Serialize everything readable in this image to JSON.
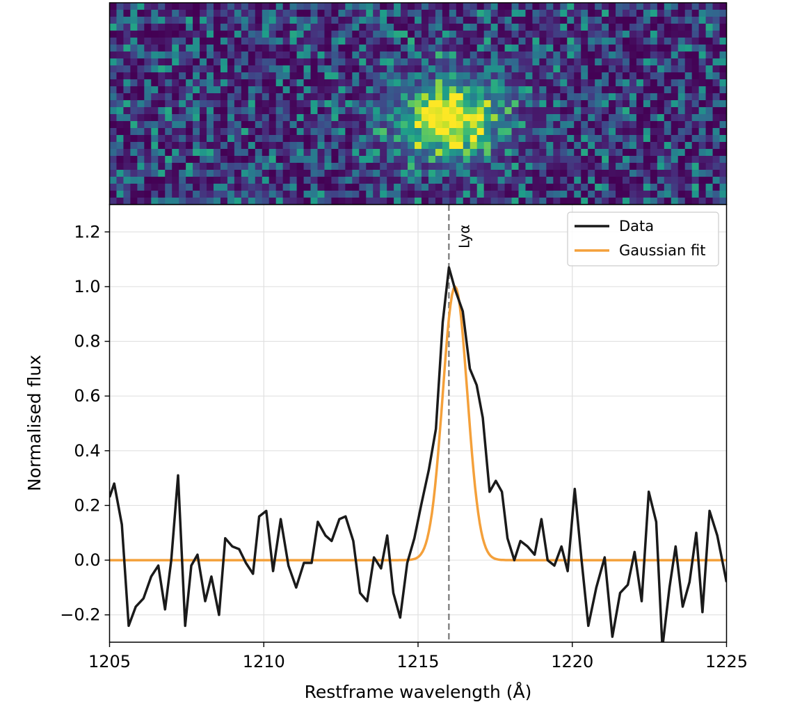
{
  "chart_data": [
    {
      "type": "heatmap",
      "panel": "2D spectrum",
      "colormap": "viridis",
      "rows": 29,
      "cols": 89,
      "axes_ticks_visible": false,
      "description_of_values": "noise background (mostly dark purple) with a bright yellow emission blob near x≈1216 Å"
    },
    {
      "type": "line",
      "xlabel": "Restframe wavelength (Å)",
      "ylabel": "Normalised flux",
      "xlim": [
        1205,
        1225
      ],
      "ylim": [
        -0.3,
        1.3
      ],
      "xticks": [
        1205,
        1210,
        1215,
        1220,
        1225
      ],
      "xtick_labels": [
        "1205",
        "1210",
        "1215",
        "1220",
        "1225"
      ],
      "yticks": [
        -0.2,
        0.0,
        0.2,
        0.4,
        0.6,
        0.8,
        1.0,
        1.2
      ],
      "ytick_labels": [
        "−0.2",
        "0.0",
        "0.2",
        "0.4",
        "0.6",
        "0.8",
        "1.0",
        "1.2"
      ],
      "grid": true,
      "legend_position": "top-right",
      "reference_line": {
        "x": 1216.0,
        "label": "Lyα",
        "style": "dashed",
        "color": "#808080"
      },
      "series": [
        {
          "name": "Data",
          "color": "#1a1a1a",
          "points": [
            [
              1205.0,
              0.23
            ],
            [
              1205.15,
              0.28
            ],
            [
              1205.4,
              0.13
            ],
            [
              1205.62,
              -0.24
            ],
            [
              1205.85,
              -0.17
            ],
            [
              1206.1,
              -0.14
            ],
            [
              1206.35,
              -0.06
            ],
            [
              1206.58,
              -0.02
            ],
            [
              1206.8,
              -0.18
            ],
            [
              1207.0,
              0.0
            ],
            [
              1207.22,
              0.31
            ],
            [
              1207.45,
              -0.24
            ],
            [
              1207.65,
              -0.02
            ],
            [
              1207.85,
              0.02
            ],
            [
              1208.1,
              -0.15
            ],
            [
              1208.3,
              -0.06
            ],
            [
              1208.55,
              -0.2
            ],
            [
              1208.75,
              0.08
            ],
            [
              1208.98,
              0.05
            ],
            [
              1209.2,
              0.04
            ],
            [
              1209.42,
              -0.01
            ],
            [
              1209.65,
              -0.05
            ],
            [
              1209.85,
              0.16
            ],
            [
              1210.08,
              0.18
            ],
            [
              1210.3,
              -0.04
            ],
            [
              1210.55,
              0.15
            ],
            [
              1210.8,
              -0.02
            ],
            [
              1211.05,
              -0.1
            ],
            [
              1211.3,
              -0.01
            ],
            [
              1211.55,
              -0.01
            ],
            [
              1211.75,
              0.14
            ],
            [
              1212.0,
              0.09
            ],
            [
              1212.2,
              0.07
            ],
            [
              1212.45,
              0.15
            ],
            [
              1212.65,
              0.16
            ],
            [
              1212.9,
              0.07
            ],
            [
              1213.12,
              -0.12
            ],
            [
              1213.35,
              -0.15
            ],
            [
              1213.57,
              0.01
            ],
            [
              1213.8,
              -0.03
            ],
            [
              1214.0,
              0.09
            ],
            [
              1214.2,
              -0.12
            ],
            [
              1214.42,
              -0.21
            ],
            [
              1214.65,
              -0.01
            ],
            [
              1214.88,
              0.08
            ],
            [
              1215.1,
              0.2
            ],
            [
              1215.35,
              0.33
            ],
            [
              1215.58,
              0.48
            ],
            [
              1215.8,
              0.87
            ],
            [
              1216.0,
              1.07
            ],
            [
              1216.2,
              0.99
            ],
            [
              1216.45,
              0.91
            ],
            [
              1216.68,
              0.7
            ],
            [
              1216.9,
              0.64
            ],
            [
              1217.1,
              0.52
            ],
            [
              1217.32,
              0.25
            ],
            [
              1217.52,
              0.29
            ],
            [
              1217.72,
              0.25
            ],
            [
              1217.9,
              0.08
            ],
            [
              1218.12,
              0.0
            ],
            [
              1218.32,
              0.07
            ],
            [
              1218.55,
              0.05
            ],
            [
              1218.78,
              0.02
            ],
            [
              1219.0,
              0.15
            ],
            [
              1219.2,
              0.0
            ],
            [
              1219.42,
              -0.02
            ],
            [
              1219.65,
              0.05
            ],
            [
              1219.85,
              -0.04
            ],
            [
              1220.08,
              0.26
            ],
            [
              1220.3,
              0.0
            ],
            [
              1220.52,
              -0.24
            ],
            [
              1220.78,
              -0.1
            ],
            [
              1221.05,
              0.01
            ],
            [
              1221.3,
              -0.28
            ],
            [
              1221.55,
              -0.12
            ],
            [
              1221.8,
              -0.09
            ],
            [
              1222.02,
              0.03
            ],
            [
              1222.25,
              -0.15
            ],
            [
              1222.48,
              0.25
            ],
            [
              1222.72,
              0.14
            ],
            [
              1222.92,
              -0.32
            ],
            [
              1223.15,
              -0.1
            ],
            [
              1223.35,
              0.05
            ],
            [
              1223.58,
              -0.17
            ],
            [
              1223.8,
              -0.08
            ],
            [
              1224.02,
              0.1
            ],
            [
              1224.22,
              -0.19
            ],
            [
              1224.45,
              0.18
            ],
            [
              1224.7,
              0.09
            ],
            [
              1225.0,
              -0.08
            ]
          ]
        },
        {
          "name": "Gaussian fit",
          "color": "#f4a03a",
          "model": {
            "amplitude": 1.0,
            "center": 1216.2,
            "sigma": 0.4,
            "baseline": 0.0
          }
        }
      ]
    }
  ]
}
